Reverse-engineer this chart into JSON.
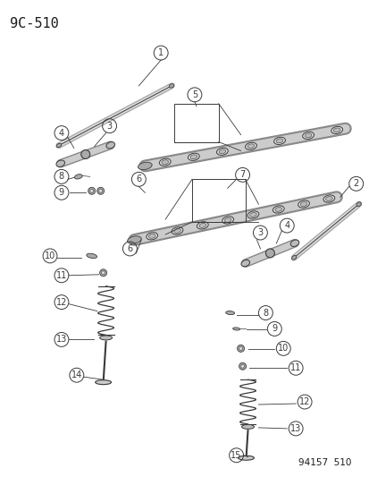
{
  "title": "9C-510",
  "footer": "94157  510",
  "bg_color": "#ffffff",
  "line_color": "#3a3a3a",
  "label_color": "#1a1a1a",
  "title_fontsize": 11,
  "footer_fontsize": 7.5
}
